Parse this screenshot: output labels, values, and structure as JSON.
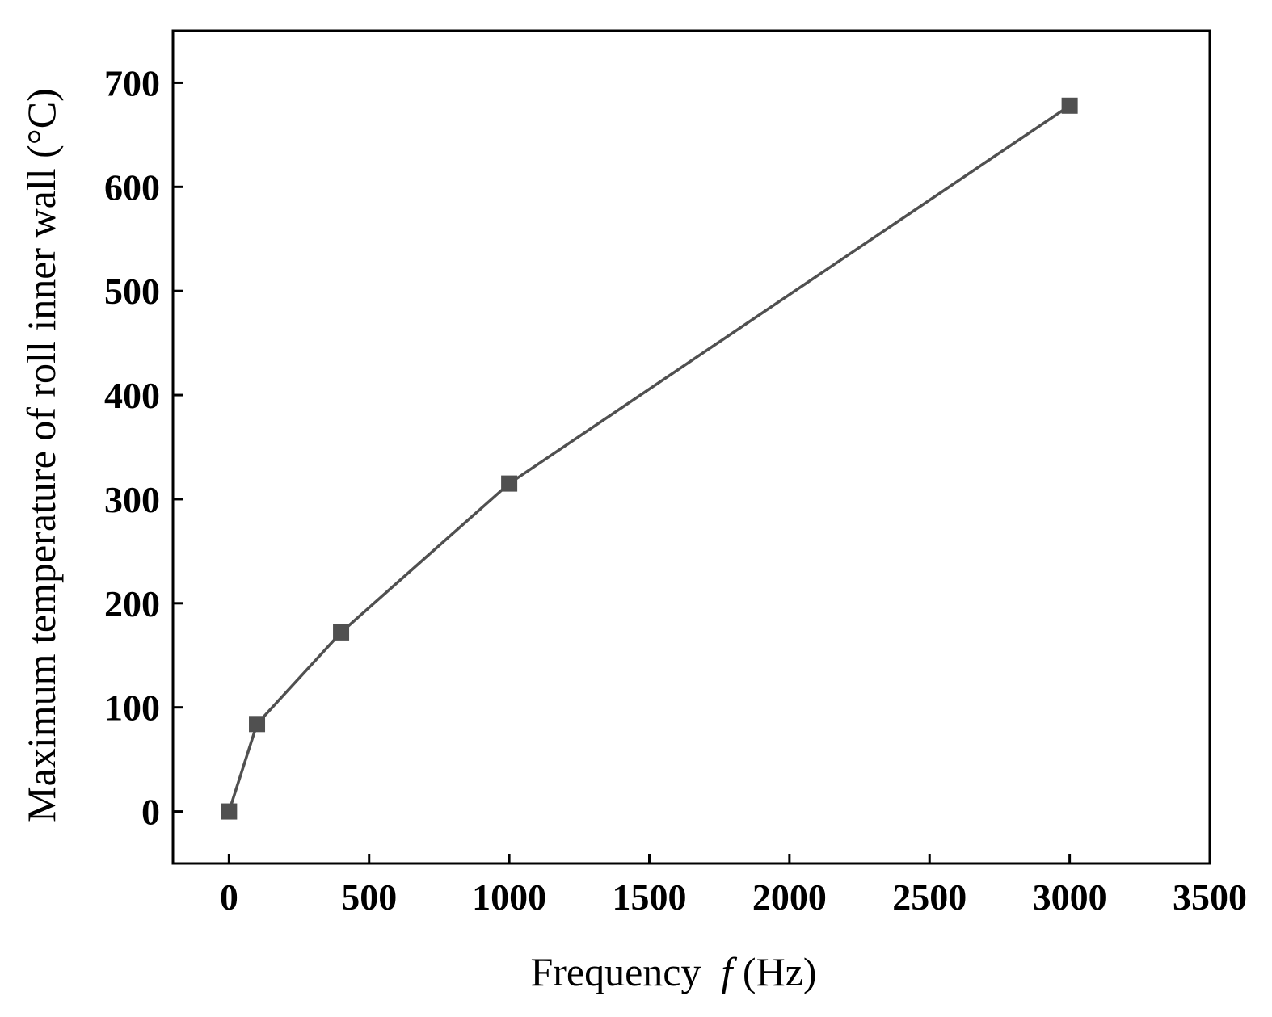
{
  "chart_data": {
    "type": "line",
    "title": "",
    "xlabel": {
      "prefix": "Frequency  ",
      "variable": "f",
      "unit": " (Hz)"
    },
    "ylabel": "Maximum temperature of roll inner wall (°C)",
    "xlim": [
      -200,
      3500
    ],
    "ylim": [
      -50,
      750
    ],
    "xticks": [
      0,
      500,
      1000,
      1500,
      2000,
      2500,
      3000,
      3500
    ],
    "yticks": [
      0,
      100,
      200,
      300,
      400,
      500,
      600,
      700
    ],
    "grid": false,
    "legend": "none",
    "series": [
      {
        "marker": "square",
        "color": "#505050",
        "x": [
          0,
          100,
          400,
          1000,
          3000
        ],
        "y": [
          0,
          84,
          172,
          315,
          678
        ]
      }
    ]
  }
}
